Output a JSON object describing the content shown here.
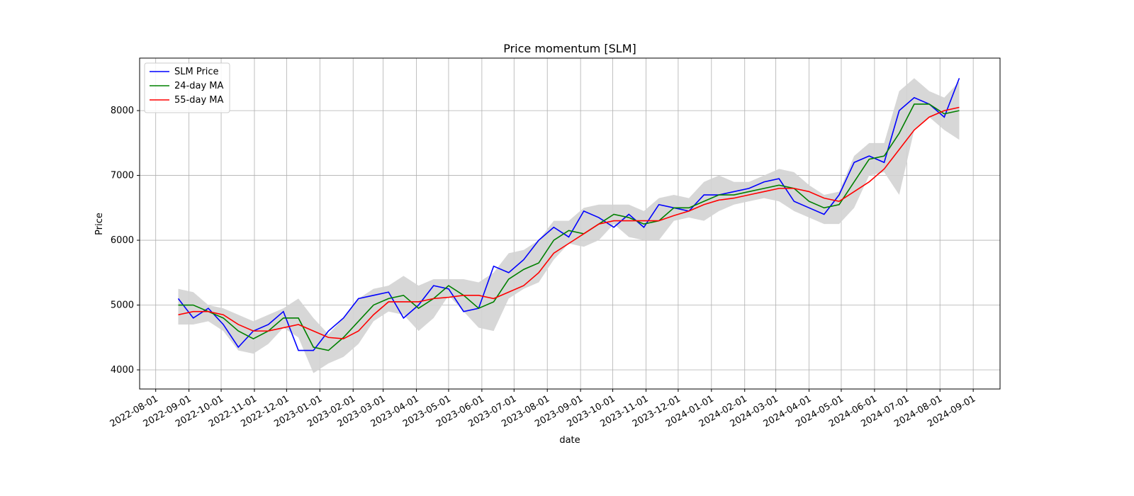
{
  "chart_data": {
    "type": "line",
    "title": "Price momentum [SLM]",
    "xlabel": "date",
    "ylabel": "Price",
    "x": [
      "2022-08-22",
      "2022-09-05",
      "2022-09-19",
      "2022-10-03",
      "2022-10-17",
      "2022-10-31",
      "2022-11-14",
      "2022-11-28",
      "2022-12-12",
      "2022-12-26",
      "2023-01-09",
      "2023-01-23",
      "2023-02-06",
      "2023-02-20",
      "2023-03-06",
      "2023-03-20",
      "2023-04-03",
      "2023-04-17",
      "2023-05-01",
      "2023-05-15",
      "2023-05-29",
      "2023-06-12",
      "2023-06-26",
      "2023-07-10",
      "2023-07-24",
      "2023-08-07",
      "2023-08-21",
      "2023-09-04",
      "2023-09-18",
      "2023-10-02",
      "2023-10-16",
      "2023-10-30",
      "2023-11-13",
      "2023-11-27",
      "2023-12-11",
      "2023-12-25",
      "2024-01-08",
      "2024-01-22",
      "2024-02-05",
      "2024-02-19",
      "2024-03-04",
      "2024-03-18",
      "2024-04-01",
      "2024-04-15",
      "2024-04-29",
      "2024-05-13",
      "2024-05-27",
      "2024-06-10",
      "2024-06-24",
      "2024-07-08",
      "2024-07-22",
      "2024-08-05",
      "2024-08-19"
    ],
    "series": [
      {
        "name": "SLM Price",
        "color": "#0000ff",
        "values": [
          5100,
          4800,
          4950,
          4700,
          4350,
          4600,
          4700,
          4900,
          4300,
          4300,
          4600,
          4800,
          5100,
          5150,
          5200,
          4800,
          5000,
          5300,
          5250,
          4900,
          4950,
          5600,
          5500,
          5700,
          6000,
          6200,
          6050,
          6450,
          6350,
          6200,
          6400,
          6200,
          6550,
          6500,
          6450,
          6700,
          6700,
          6750,
          6800,
          6900,
          6950,
          6600,
          6500,
          6400,
          6700,
          7200,
          7300,
          7200,
          8000,
          8200,
          8100,
          7900,
          8500
        ]
      },
      {
        "name": "24-day MA",
        "color": "#008000",
        "values": [
          5000,
          5000,
          4900,
          4800,
          4600,
          4480,
          4600,
          4800,
          4800,
          4350,
          4300,
          4500,
          4750,
          5000,
          5100,
          5150,
          4950,
          5100,
          5300,
          5150,
          4950,
          5050,
          5400,
          5550,
          5650,
          6000,
          6150,
          6100,
          6250,
          6400,
          6350,
          6250,
          6300,
          6500,
          6500,
          6600,
          6700,
          6700,
          6750,
          6800,
          6850,
          6800,
          6600,
          6500,
          6550,
          6900,
          7250,
          7300,
          7650,
          8100,
          8100,
          7950,
          8000
        ]
      },
      {
        "name": "55-day MA",
        "color": "#ff0000",
        "values": [
          4850,
          4900,
          4900,
          4850,
          4700,
          4600,
          4600,
          4650,
          4700,
          4600,
          4500,
          4480,
          4600,
          4850,
          5050,
          5050,
          5050,
          5100,
          5120,
          5150,
          5150,
          5100,
          5200,
          5300,
          5500,
          5800,
          5950,
          6100,
          6250,
          6300,
          6300,
          6300,
          6300,
          6380,
          6450,
          6550,
          6620,
          6650,
          6700,
          6750,
          6800,
          6800,
          6750,
          6650,
          6600,
          6750,
          6900,
          7100,
          7400,
          7700,
          7900,
          8000,
          8050
        ]
      }
    ],
    "band": {
      "color": "#d3d3d3",
      "upper": [
        5250,
        5200,
        5000,
        4950,
        4850,
        4750,
        4850,
        4950,
        5100,
        4800,
        4550,
        4800,
        5100,
        5250,
        5300,
        5450,
        5300,
        5400,
        5400,
        5400,
        5350,
        5500,
        5800,
        5850,
        6000,
        6300,
        6300,
        6500,
        6550,
        6550,
        6550,
        6450,
        6650,
        6700,
        6650,
        6900,
        7000,
        6900,
        6900,
        7000,
        7100,
        7050,
        6850,
        6700,
        6750,
        7300,
        7500,
        7500,
        8300,
        8500,
        8300,
        8200,
        8450
      ],
      "lower": [
        4700,
        4700,
        4750,
        4600,
        4300,
        4250,
        4400,
        4650,
        4500,
        3950,
        4100,
        4200,
        4400,
        4750,
        4900,
        4850,
        4600,
        4800,
        5150,
        4900,
        4650,
        4600,
        5100,
        5250,
        5350,
        5700,
        5950,
        5900,
        6000,
        6250,
        6050,
        6000,
        6000,
        6300,
        6350,
        6300,
        6450,
        6550,
        6600,
        6650,
        6600,
        6450,
        6350,
        6250,
        6250,
        6500,
        7000,
        7050,
        6700,
        7700,
        7900,
        7700,
        7550
      ]
    },
    "xlim": [
      "2022-07-17",
      "2024-09-26"
    ],
    "xticks": [
      "2022-08-01",
      "2022-09-01",
      "2022-10-01",
      "2022-11-01",
      "2022-12-01",
      "2023-01-01",
      "2023-02-01",
      "2023-03-01",
      "2023-04-01",
      "2023-05-01",
      "2023-06-01",
      "2023-07-01",
      "2023-08-01",
      "2023-09-01",
      "2023-10-01",
      "2023-11-01",
      "2023-12-01",
      "2024-01-01",
      "2024-02-01",
      "2024-03-01",
      "2024-04-01",
      "2024-05-01",
      "2024-06-01",
      "2024-07-01",
      "2024-08-01",
      "2024-09-01"
    ],
    "ylim": [
      3705,
      8810
    ],
    "yticks": [
      4000,
      5000,
      6000,
      7000,
      8000
    ],
    "grid": true,
    "legend": "upper left"
  }
}
